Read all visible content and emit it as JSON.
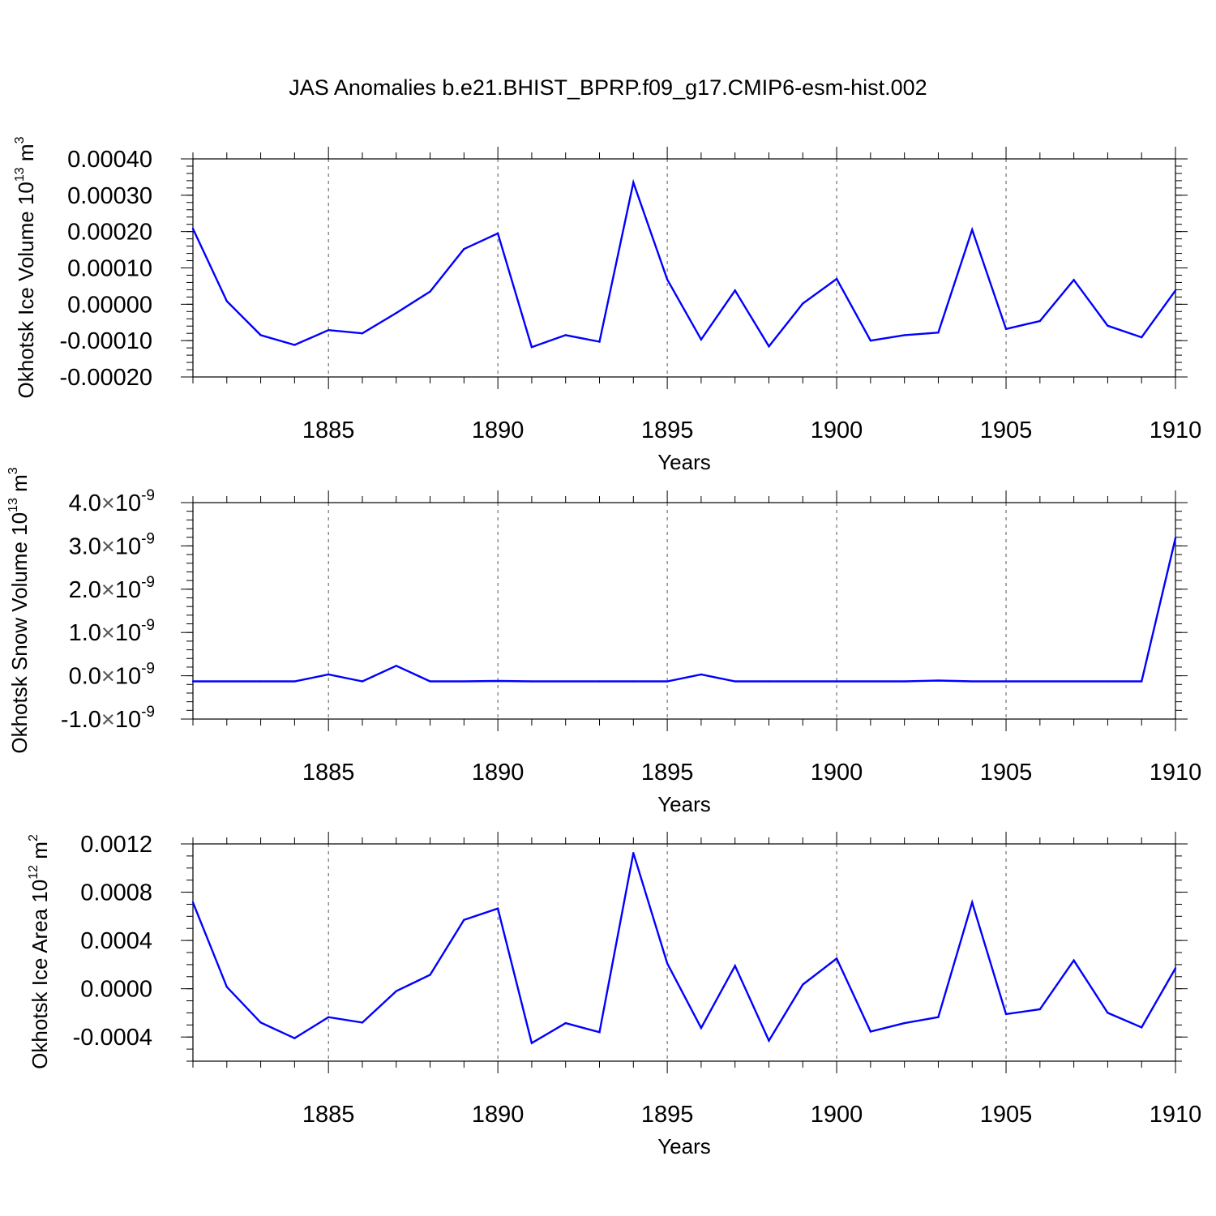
{
  "title": "JAS Anomalies b.e21.BHIST_BPRP.f09_g17.CMIP6-esm-hist.002",
  "colors": {
    "series": "#0000ff",
    "axis": "#000000",
    "grid": "#555555"
  },
  "chart_data": [
    {
      "type": "line",
      "ylabel": "Okhotsk Ice Volume 10",
      "ylabel_sup": "13",
      "ylabel_unit": " m",
      "ylabel_unit_sup": "3",
      "xlabel": "Years",
      "xlim": [
        1881,
        1910
      ],
      "ylim": [
        -0.0002,
        0.0004
      ],
      "x_ticks": [
        1885,
        1890,
        1895,
        1900,
        1905,
        1910
      ],
      "y_ticks": [
        -0.0002,
        -0.0001,
        0.0,
        0.0001,
        0.0002,
        0.0003,
        0.0004
      ],
      "y_tick_labels": [
        "-0.00020",
        "-0.00010",
        "0.00000",
        "0.00010",
        "0.00020",
        "0.00030",
        "0.00040"
      ],
      "y_minor_step": 2e-05,
      "grid": "vertical dashed at major x ticks",
      "x": [
        1881,
        1882,
        1883,
        1884,
        1885,
        1886,
        1887,
        1888,
        1889,
        1890,
        1891,
        1892,
        1893,
        1894,
        1895,
        1896,
        1897,
        1898,
        1899,
        1900,
        1901,
        1902,
        1903,
        1904,
        1905,
        1906,
        1907,
        1908,
        1909,
        1910
      ],
      "values": [
        0.000208,
        8.5e-06,
        -8.5e-05,
        -0.000112,
        -7.1e-05,
        -8e-05,
        -2.4e-05,
        3.5e-05,
        0.000152,
        0.000195,
        -0.000118,
        -8.5e-05,
        -0.000103,
        0.000335,
        6.8e-05,
        -9.7e-05,
        3.8e-05,
        -0.000116,
        2e-06,
        7e-05,
        -0.0001,
        -8.5e-05,
        -7.8e-05,
        0.000205,
        -6.8e-05,
        -4.6e-05,
        6.7e-05,
        -5.9e-05,
        -9.1e-05,
        3.8e-05
      ]
    },
    {
      "type": "line",
      "ylabel": "Okhotsk Snow Volume 10",
      "ylabel_sup": "13",
      "ylabel_unit": " m",
      "ylabel_unit_sup": "3",
      "xlabel": "Years",
      "xlim": [
        1881,
        1910
      ],
      "ylim": [
        -1e-09,
        4e-09
      ],
      "x_ticks": [
        1885,
        1890,
        1895,
        1900,
        1905,
        1910
      ],
      "y_ticks": [
        -1e-09,
        0.0,
        1e-09,
        2e-09,
        3e-09,
        4e-09
      ],
      "y_tick_mantissas": [
        "-1.0",
        "0.0",
        "1.0",
        "2.0",
        "3.0",
        "4.0"
      ],
      "y_tick_times": "×",
      "y_tick_base": "10",
      "y_tick_exponent": "-9",
      "y_minor_step": 2e-10,
      "grid": "vertical dashed at major x ticks",
      "x": [
        1881,
        1882,
        1883,
        1884,
        1885,
        1886,
        1887,
        1888,
        1889,
        1890,
        1891,
        1892,
        1893,
        1894,
        1895,
        1896,
        1897,
        1898,
        1899,
        1900,
        1901,
        1902,
        1903,
        1904,
        1905,
        1906,
        1907,
        1908,
        1909,
        1910
      ],
      "values": [
        -1.3e-10,
        -1.3e-10,
        -1.3e-10,
        -1.3e-10,
        3e-11,
        -1.3e-10,
        2.3e-10,
        -1.3e-10,
        -1.3e-10,
        -1.2e-10,
        -1.3e-10,
        -1.3e-10,
        -1.3e-10,
        -1.3e-10,
        -1.3e-10,
        3e-11,
        -1.3e-10,
        -1.3e-10,
        -1.3e-10,
        -1.3e-10,
        -1.3e-10,
        -1.3e-10,
        -1.1e-10,
        -1.3e-10,
        -1.3e-10,
        -1.3e-10,
        -1.3e-10,
        -1.3e-10,
        -1.3e-10,
        3.18e-09
      ]
    },
    {
      "type": "line",
      "ylabel": "Okhotsk Ice Area 10",
      "ylabel_sup": "12",
      "ylabel_unit": " m",
      "ylabel_unit_sup": "2",
      "xlabel": "Years",
      "xlim": [
        1881,
        1910
      ],
      "ylim": [
        -0.0006,
        0.0012
      ],
      "x_ticks": [
        1885,
        1890,
        1895,
        1900,
        1905,
        1910
      ],
      "y_ticks": [
        -0.0004,
        0.0,
        0.0004,
        0.0008,
        0.0012
      ],
      "y_tick_labels": [
        "-0.0004",
        "0.0000",
        "0.0004",
        "0.0008",
        "0.0012"
      ],
      "y_minor_step": 0.0001,
      "grid": "vertical dashed at major x ticks",
      "x": [
        1881,
        1882,
        1883,
        1884,
        1885,
        1886,
        1887,
        1888,
        1889,
        1890,
        1891,
        1892,
        1893,
        1894,
        1895,
        1896,
        1897,
        1898,
        1899,
        1900,
        1901,
        1902,
        1903,
        1904,
        1905,
        1906,
        1907,
        1908,
        1909,
        1910
      ],
      "values": [
        0.000715,
        1.5e-05,
        -0.00028,
        -0.00041,
        -0.000235,
        -0.00028,
        -2e-05,
        0.000115,
        0.00057,
        0.000665,
        -0.00045,
        -0.000285,
        -0.00036,
        0.001125,
        0.00021,
        -0.000325,
        0.00019,
        -0.00043,
        3.5e-05,
        0.00025,
        -0.000355,
        -0.000285,
        -0.000235,
        0.000715,
        -0.00021,
        -0.00017,
        0.000235,
        -0.0002,
        -0.00032,
        0.00017
      ]
    }
  ]
}
